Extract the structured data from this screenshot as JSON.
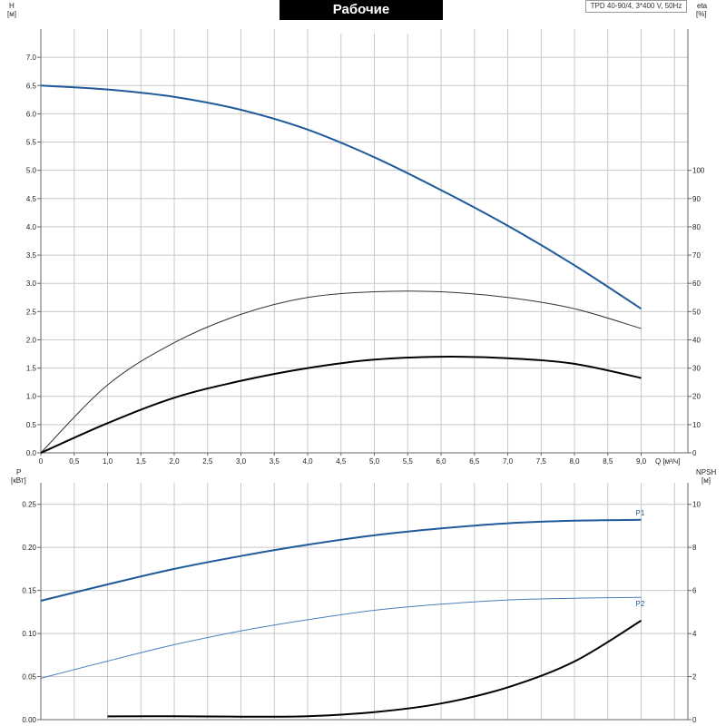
{
  "title": "Рабочие характеристики",
  "model": "TPD 40-90/4, 3*400 V, 50Hz",
  "colors": {
    "blue": "#1f5a9a",
    "light_blue": "#4a7fbf",
    "black": "#000000",
    "grid": "#c8c8c8",
    "axis": "#666666"
  },
  "chart_data": [
    {
      "type": "line",
      "axes": {
        "x": {
          "label": "Q [м³/ч]",
          "range": [
            0,
            9.7
          ],
          "ticks": [
            "0",
            "0,5",
            "1,0",
            "1,5",
            "2,0",
            "2,5",
            "3,0",
            "3,5",
            "4,0",
            "4,5",
            "5,0",
            "5,5",
            "6,0",
            "6,5",
            "7,0",
            "7,5",
            "8,0",
            "8,5",
            "9,0"
          ]
        },
        "y_left": {
          "label_top": "H",
          "label_unit": "[м]",
          "range": [
            0,
            7.5
          ],
          "ticks": [
            "0.0",
            "0.5",
            "1.0",
            "1.5",
            "2.0",
            "2.5",
            "3.0",
            "3.5",
            "4.0",
            "4.5",
            "5.0",
            "5.5",
            "6.0",
            "6.5",
            "7.0"
          ]
        },
        "y_right": {
          "label_top": "eta",
          "label_unit": "[%]",
          "range": [
            0,
            150
          ],
          "ticks": [
            "0",
            "10",
            "20",
            "30",
            "40",
            "50",
            "60",
            "70",
            "80",
            "90",
            "100"
          ]
        }
      },
      "grid": true,
      "series": [
        {
          "role": "head",
          "axis": "left",
          "color": "#1f5a9a",
          "width": 2,
          "x": [
            0,
            1,
            2,
            3,
            4,
            5,
            6,
            7,
            8,
            9
          ],
          "y": [
            6.5,
            6.43,
            6.3,
            6.07,
            5.72,
            5.23,
            4.65,
            4.02,
            3.32,
            2.55
          ]
        },
        {
          "role": "efficiency",
          "axis": "right",
          "color": "#333333",
          "width": 1,
          "x": [
            0,
            1,
            2,
            3,
            4,
            5,
            6,
            7,
            8,
            9
          ],
          "y": [
            0,
            24,
            39,
            49,
            55,
            57,
            57,
            55,
            51,
            44
          ]
        },
        {
          "role": "efficiency-2",
          "axis": "right",
          "color": "#000000",
          "width": 2,
          "x": [
            0,
            1,
            2,
            3,
            4,
            5,
            6,
            7,
            8,
            9
          ],
          "y": [
            0,
            10.5,
            19.5,
            25.5,
            30,
            33,
            34,
            33.5,
            31.5,
            26.5
          ]
        }
      ]
    },
    {
      "type": "line",
      "axes": {
        "x": {
          "range": [
            0,
            9.7
          ]
        },
        "y_left": {
          "label_top": "P",
          "label_unit": "[кВт]",
          "range": [
            0,
            0.275
          ],
          "ticks": [
            "0.00",
            "0.05",
            "0.10",
            "0.15",
            "0.20",
            "0.25"
          ]
        },
        "y_right": {
          "label_top": "NPSH",
          "label_unit": "[м]",
          "range": [
            0,
            11
          ],
          "ticks": [
            "0",
            "2",
            "4",
            "6",
            "8",
            "10"
          ]
        }
      },
      "grid": true,
      "series": [
        {
          "name": "P1",
          "axis": "left",
          "color": "#1f5a9a",
          "width": 2,
          "x": [
            0,
            1,
            2,
            3,
            4,
            5,
            6,
            7,
            8,
            9
          ],
          "y": [
            0.138,
            0.157,
            0.175,
            0.19,
            0.203,
            0.214,
            0.222,
            0.228,
            0.231,
            0.232
          ]
        },
        {
          "name": "P2",
          "axis": "left",
          "color": "#4a7fbf",
          "width": 1,
          "x": [
            0,
            1,
            2,
            3,
            4,
            5,
            6,
            7,
            8,
            9
          ],
          "y": [
            0.048,
            0.068,
            0.087,
            0.103,
            0.116,
            0.127,
            0.134,
            0.139,
            0.141,
            0.142
          ]
        },
        {
          "role": "npsh",
          "axis": "right",
          "color": "#000000",
          "width": 2,
          "x": [
            1,
            2,
            3,
            4,
            5,
            6,
            7,
            8,
            9
          ],
          "y": [
            0.15,
            0.16,
            0.14,
            0.16,
            0.35,
            0.75,
            1.5,
            2.7,
            4.6
          ]
        }
      ]
    }
  ]
}
